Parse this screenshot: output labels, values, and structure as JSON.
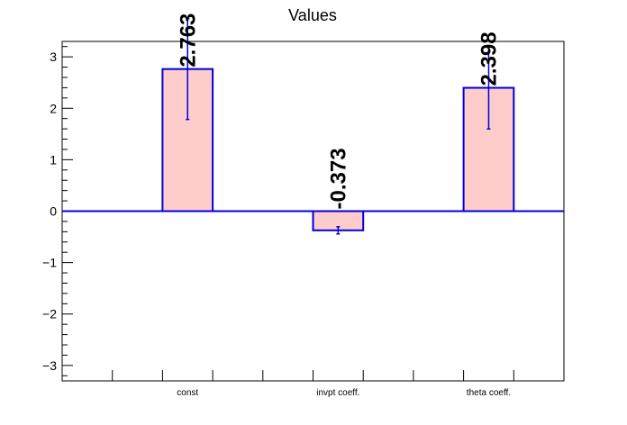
{
  "chart_data": {
    "type": "bar",
    "title": "Values",
    "categories": [
      "const",
      "invpt coeff.",
      "theta coeff."
    ],
    "values": [
      2.763,
      -0.373,
      2.398
    ],
    "value_labels": [
      "2.763",
      "-0.373",
      "2.398"
    ],
    "errors": [
      0.98,
      0.07,
      0.8
    ],
    "ylim": [
      -3.3,
      3.3
    ],
    "yticks": [
      -3,
      -2,
      -1,
      0,
      1,
      2,
      3
    ],
    "ytick_labels": [
      "−3",
      "−2",
      "−1",
      "0",
      "1",
      "2",
      "3"
    ],
    "grid": false,
    "legend": "none",
    "colors": {
      "bar_fill": "#ffcccc",
      "bar_edge": "#0000dd",
      "baseline": "#0000dd",
      "axis": "#000000"
    }
  }
}
